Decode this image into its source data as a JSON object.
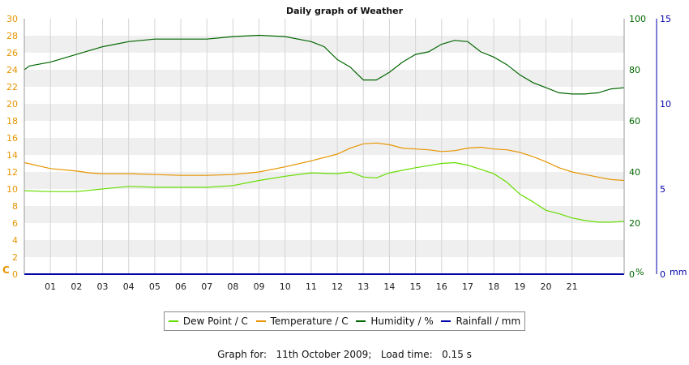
{
  "chart_data": {
    "type": "line",
    "title": "Daily graph of Weather",
    "x_ticks": [
      "01",
      "02",
      "03",
      "04",
      "05",
      "06",
      "07",
      "08",
      "09",
      "10",
      "11",
      "12",
      "13",
      "14",
      "15",
      "16",
      "17",
      "18",
      "19",
      "20",
      "21"
    ],
    "x_range_hours": [
      0,
      23
    ],
    "axes": {
      "temp": {
        "unit": "C",
        "min": 0,
        "max": 30,
        "ticks": [
          0,
          2,
          4,
          6,
          8,
          10,
          12,
          14,
          16,
          18,
          20,
          22,
          24,
          26,
          28,
          30
        ],
        "color": "#e69500"
      },
      "humidity": {
        "unit": "%",
        "min": 0,
        "max": 100,
        "ticks": [
          0,
          20,
          40,
          60,
          80,
          100
        ],
        "color": "#006600"
      },
      "rainfall": {
        "unit": "mm",
        "min": 0,
        "max": 15,
        "ticks": [
          0,
          5,
          10,
          15
        ],
        "color": "#0000aa"
      }
    },
    "series": [
      {
        "name": "Dew Point / C",
        "axis": "temp",
        "color": "#66dd00",
        "points": [
          [
            0,
            9.8
          ],
          [
            1,
            9.7
          ],
          [
            2,
            9.7
          ],
          [
            3,
            10
          ],
          [
            4,
            10.3
          ],
          [
            5,
            10.2
          ],
          [
            6,
            10.2
          ],
          [
            7,
            10.2
          ],
          [
            8,
            10.4
          ],
          [
            9,
            11
          ],
          [
            10,
            11.5
          ],
          [
            11,
            11.9
          ],
          [
            12,
            11.8
          ],
          [
            12.5,
            12
          ],
          [
            13,
            11.4
          ],
          [
            13.5,
            11.3
          ],
          [
            14,
            11.9
          ],
          [
            15,
            12.5
          ],
          [
            16,
            13
          ],
          [
            16.5,
            13.1
          ],
          [
            17,
            12.8
          ],
          [
            17.5,
            12.3
          ],
          [
            18,
            11.8
          ],
          [
            18.5,
            10.8
          ],
          [
            19,
            9.4
          ],
          [
            19.5,
            8.5
          ],
          [
            20,
            7.5
          ],
          [
            20.5,
            7.1
          ],
          [
            21,
            6.6
          ],
          [
            21.5,
            6.3
          ],
          [
            22,
            6.1
          ],
          [
            22.5,
            6.1
          ],
          [
            23,
            6.2
          ]
        ]
      },
      {
        "name": "Temperature / C",
        "axis": "temp",
        "color": "#e69500",
        "points": [
          [
            0,
            13.1
          ],
          [
            1,
            12.4
          ],
          [
            2,
            12.1
          ],
          [
            2.5,
            11.9
          ],
          [
            3,
            11.8
          ],
          [
            4,
            11.8
          ],
          [
            5,
            11.7
          ],
          [
            6,
            11.6
          ],
          [
            7,
            11.6
          ],
          [
            8,
            11.7
          ],
          [
            9,
            12
          ],
          [
            10,
            12.6
          ],
          [
            11,
            13.3
          ],
          [
            12,
            14.1
          ],
          [
            12.5,
            14.8
          ],
          [
            13,
            15.3
          ],
          [
            13.5,
            15.4
          ],
          [
            14,
            15.2
          ],
          [
            14.5,
            14.8
          ],
          [
            15,
            14.7
          ],
          [
            15.5,
            14.6
          ],
          [
            16,
            14.4
          ],
          [
            16.5,
            14.5
          ],
          [
            17,
            14.8
          ],
          [
            17.5,
            14.9
          ],
          [
            18,
            14.7
          ],
          [
            18.5,
            14.6
          ],
          [
            19,
            14.3
          ],
          [
            19.5,
            13.8
          ],
          [
            20,
            13.2
          ],
          [
            20.5,
            12.5
          ],
          [
            21,
            12
          ],
          [
            21.5,
            11.7
          ],
          [
            22,
            11.4
          ],
          [
            22.5,
            11.1
          ],
          [
            23,
            11
          ]
        ]
      },
      {
        "name": "Humidity / %",
        "axis": "humidity",
        "color": "#006600",
        "points": [
          [
            0,
            80
          ],
          [
            0.2,
            81.5
          ],
          [
            1,
            83
          ],
          [
            2,
            86
          ],
          [
            3,
            89
          ],
          [
            3.5,
            90
          ],
          [
            4,
            91
          ],
          [
            5,
            92
          ],
          [
            6,
            92
          ],
          [
            7,
            92
          ],
          [
            8,
            93
          ],
          [
            9,
            93.5
          ],
          [
            10,
            93
          ],
          [
            11,
            91
          ],
          [
            11.5,
            89
          ],
          [
            12,
            84
          ],
          [
            12.5,
            81
          ],
          [
            12.8,
            78
          ],
          [
            13,
            76
          ],
          [
            13.5,
            76
          ],
          [
            14,
            79
          ],
          [
            14.5,
            83
          ],
          [
            15,
            86
          ],
          [
            15.5,
            87
          ],
          [
            16,
            90
          ],
          [
            16.5,
            91.5
          ],
          [
            17,
            91
          ],
          [
            17.5,
            87
          ],
          [
            18,
            85
          ],
          [
            18.5,
            82
          ],
          [
            19,
            78
          ],
          [
            19.5,
            75
          ],
          [
            20,
            73
          ],
          [
            20.5,
            71
          ],
          [
            21,
            70.5
          ],
          [
            21.5,
            70.5
          ],
          [
            22,
            71
          ],
          [
            22.5,
            72.5
          ],
          [
            23,
            73
          ]
        ]
      },
      {
        "name": "Rainfall / mm",
        "axis": "rainfall",
        "color": "#0000aa",
        "points": [
          [
            0,
            0
          ],
          [
            23,
            0
          ]
        ]
      }
    ],
    "legend_position": "bottom",
    "grid": true
  },
  "footer": {
    "label": "Graph for:",
    "date": "11th October 2009;",
    "load_label": "Load time:",
    "load_time": "0.15 s"
  }
}
